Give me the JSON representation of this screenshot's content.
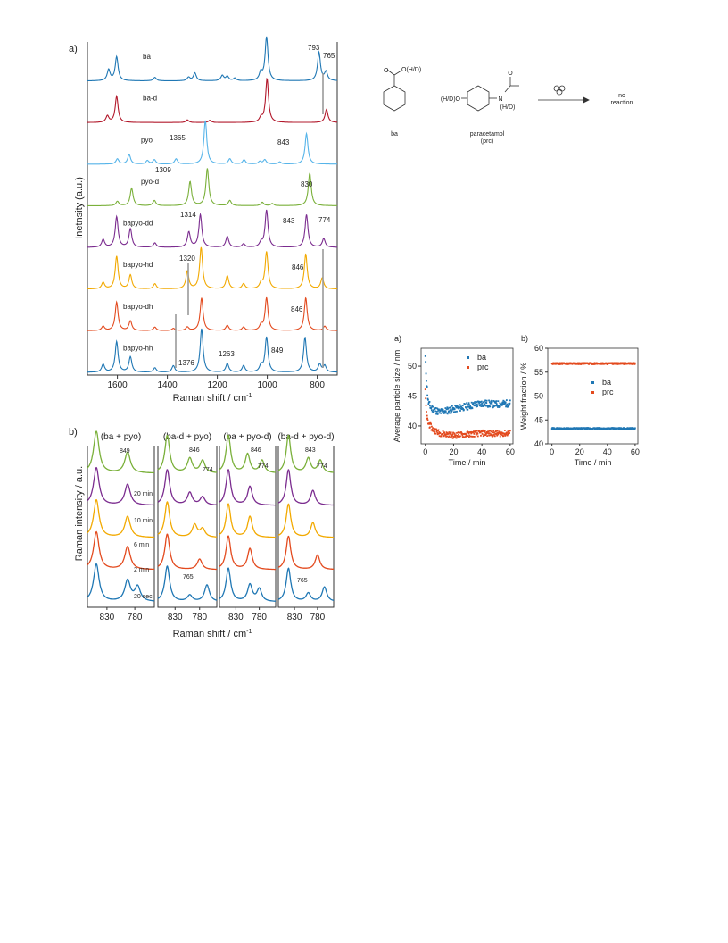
{
  "figure_top": {
    "panel_label": "a)",
    "ylabel": "Inetnsity (a.u.)",
    "xlabel": "Raman shift / cm",
    "xlabel_sup": "-1",
    "xticks": [
      "1600",
      "1400",
      "1200",
      "1000",
      "800"
    ],
    "trace_labels": [
      "ba",
      "ba-d",
      "pyo",
      "pyo-d",
      "bapyo-dd",
      "bapyo-hd",
      "bapyo-dh",
      "bapyo-hh"
    ],
    "annotations": [
      "793",
      "765",
      "1365",
      "843",
      "1309",
      "830",
      "1314",
      "843",
      "774",
      "1320",
      "846",
      "846",
      "1376",
      "1263",
      "849"
    ]
  },
  "figure_bottom": {
    "panel_label": "b)",
    "ylabel": "Raman intensity / a.u.",
    "xlabel": "Raman shift / cm",
    "xlabel_sup": "-1",
    "xticks": [
      "830",
      "780"
    ],
    "column_titles": [
      "(ba + pyo)",
      "(ba-d + pyo)",
      "(ba + pyo-d)",
      "(ba-d + pyo-d)"
    ],
    "time_labels": [
      "20 min",
      "10 min",
      "6 min",
      "2 min",
      "20 sec"
    ],
    "annotations": [
      "849",
      "846",
      "774",
      "846",
      "774",
      "843",
      "774",
      "765",
      "765"
    ]
  },
  "scheme": {
    "reactant1_label": "ba",
    "reactant1_group": "O(H/D)",
    "reactant1_o": "O",
    "reactant2_label": "paracetamol",
    "reactant2_abbrev": "(prc)",
    "reactant2_group_left": "(H/D)O",
    "reactant2_n": "N",
    "reactant2_nh": "(H/D)",
    "reactant2_o": "O",
    "product_line1": "no",
    "product_line2": "reaction"
  },
  "chart_data": [
    {
      "type": "line",
      "panel": "a",
      "title": "",
      "xlabel": "Raman shift / cm-1",
      "ylabel": "Inetnsity (a.u.)",
      "xlim": [
        1720,
        720
      ],
      "x_reversed": true,
      "stacked_offset": true,
      "series": [
        {
          "name": "ba",
          "color": "#1f77b4",
          "peaks": [
            [
              1635,
              0.25
            ],
            [
              1603,
              0.55
            ],
            [
              1450,
              0.08
            ],
            [
              1315,
              0.08
            ],
            [
              1290,
              0.18
            ],
            [
              1180,
              0.12
            ],
            [
              1160,
              0.1
            ],
            [
              1130,
              0.06
            ],
            [
              1026,
              0.18
            ],
            [
              1003,
              1.0
            ],
            [
              793,
              0.65
            ],
            [
              765,
              0.2
            ]
          ]
        },
        {
          "name": "ba-d",
          "color": "#b2182b",
          "peaks": [
            [
              1640,
              0.15
            ],
            [
              1603,
              0.6
            ],
            [
              1320,
              0.06
            ],
            [
              1230,
              0.05
            ],
            [
              1025,
              0.1
            ],
            [
              1001,
              1.0
            ],
            [
              763,
              0.3
            ]
          ]
        },
        {
          "name": "pyo",
          "color": "#56b4e9",
          "peaks": [
            [
              1600,
              0.12
            ],
            [
              1553,
              0.22
            ],
            [
              1480,
              0.08
            ],
            [
              1452,
              0.1
            ],
            [
              1365,
              0.12
            ],
            [
              1248,
              1.0
            ],
            [
              1150,
              0.12
            ],
            [
              1093,
              0.1
            ],
            [
              1030,
              0.06
            ],
            [
              1010,
              0.1
            ],
            [
              950,
              0.05
            ],
            [
              843,
              0.7
            ]
          ]
        },
        {
          "name": "pyo-d",
          "color": "#7ab03a",
          "peaks": [
            [
              1600,
              0.1
            ],
            [
              1543,
              0.4
            ],
            [
              1452,
              0.12
            ],
            [
              1309,
              0.55
            ],
            [
              1240,
              0.85
            ],
            [
              1150,
              0.12
            ],
            [
              1020,
              0.08
            ],
            [
              980,
              0.05
            ],
            [
              830,
              0.75
            ]
          ]
        },
        {
          "name": "bapyo-dd",
          "color": "#7b2c8f",
          "peaks": [
            [
              1657,
              0.18
            ],
            [
              1603,
              0.7
            ],
            [
              1548,
              0.42
            ],
            [
              1450,
              0.1
            ],
            [
              1314,
              0.35
            ],
            [
              1268,
              0.75
            ],
            [
              1160,
              0.25
            ],
            [
              1095,
              0.08
            ],
            [
              1025,
              0.1
            ],
            [
              1003,
              0.85
            ],
            [
              843,
              0.75
            ],
            [
              774,
              0.2
            ]
          ]
        },
        {
          "name": "bapyo-hd",
          "color": "#f2a900",
          "peaks": [
            [
              1657,
              0.15
            ],
            [
              1603,
              0.75
            ],
            [
              1548,
              0.32
            ],
            [
              1450,
              0.12
            ],
            [
              1320,
              0.4
            ],
            [
              1265,
              0.95
            ],
            [
              1160,
              0.3
            ],
            [
              1095,
              0.12
            ],
            [
              1025,
              0.12
            ],
            [
              1003,
              0.85
            ],
            [
              846,
              0.8
            ],
            [
              780,
              0.25
            ]
          ]
        },
        {
          "name": "bapyo-dh",
          "color": "#e34a1e",
          "peaks": [
            [
              1657,
              0.1
            ],
            [
              1603,
              0.65
            ],
            [
              1548,
              0.22
            ],
            [
              1450,
              0.08
            ],
            [
              1376,
              0.05
            ],
            [
              1320,
              0.08
            ],
            [
              1263,
              0.75
            ],
            [
              1160,
              0.12
            ],
            [
              1095,
              0.08
            ],
            [
              1025,
              0.12
            ],
            [
              1003,
              0.75
            ],
            [
              846,
              0.75
            ],
            [
              770,
              0.1
            ]
          ]
        },
        {
          "name": "bapyo-hh",
          "color": "#1f77b4",
          "peaks": [
            [
              1657,
              0.18
            ],
            [
              1603,
              0.7
            ],
            [
              1548,
              0.35
            ],
            [
              1450,
              0.1
            ],
            [
              1376,
              0.15
            ],
            [
              1263,
              1.0
            ],
            [
              1160,
              0.2
            ],
            [
              1095,
              0.15
            ],
            [
              1025,
              0.15
            ],
            [
              1003,
              0.8
            ],
            [
              849,
              0.8
            ],
            [
              790,
              0.18
            ],
            [
              770,
              0.15
            ]
          ]
        }
      ]
    },
    {
      "type": "line",
      "panel": "b",
      "title": "",
      "xlabel": "Raman shift / cm-1",
      "ylabel": "Raman intensity / a.u.",
      "xlim": [
        865,
        745
      ],
      "x_reversed": true,
      "stacked_offset": true,
      "times": [
        "20 sec",
        "2 min",
        "6 min",
        "10 min",
        "20 min"
      ],
      "time_colors": [
        "#1f77b4",
        "#e34a1e",
        "#f2a900",
        "#7b2c8f",
        "#7ab03a"
      ],
      "columns": [
        {
          "name": "(ba + pyo)",
          "peaks": {
            "20 sec": [
              [
                849,
                0.9
              ],
              [
                793,
                0.5
              ],
              [
                775,
                0.35
              ]
            ],
            "2 min": [
              [
                849,
                0.9
              ],
              [
                793,
                0.55
              ]
            ],
            "6 min": [
              [
                849,
                0.9
              ],
              [
                793,
                0.5
              ]
            ],
            "10 min": [
              [
                849,
                0.9
              ],
              [
                793,
                0.5
              ]
            ],
            "20 min": [
              [
                849,
                1.0
              ],
              [
                793,
                0.5
              ]
            ]
          }
        },
        {
          "name": "(ba-d + pyo)",
          "peaks": {
            "20 sec": [
              [
                846,
                0.85
              ],
              [
                800,
                0.15
              ],
              [
                765,
                0.4
              ]
            ],
            "2 min": [
              [
                846,
                0.85
              ],
              [
                780,
                0.25
              ]
            ],
            "6 min": [
              [
                846,
                0.85
              ],
              [
                790,
                0.3
              ],
              [
                774,
                0.2
              ]
            ],
            "10 min": [
              [
                846,
                0.85
              ],
              [
                800,
                0.3
              ],
              [
                774,
                0.2
              ]
            ],
            "20 min": [
              [
                846,
                0.9
              ],
              [
                800,
                0.35
              ],
              [
                774,
                0.3
              ]
            ]
          }
        },
        {
          "name": "(ba + pyo-d)",
          "peaks": {
            "20 sec": [
              [
                846,
                0.8
              ],
              [
                800,
                0.4
              ],
              [
                780,
                0.3
              ]
            ],
            "2 min": [
              [
                846,
                0.8
              ],
              [
                800,
                0.5
              ]
            ],
            "6 min": [
              [
                846,
                0.8
              ],
              [
                800,
                0.5
              ]
            ],
            "10 min": [
              [
                846,
                0.85
              ],
              [
                800,
                0.45
              ]
            ],
            "20 min": [
              [
                846,
                0.9
              ],
              [
                805,
                0.45
              ],
              [
                774,
                0.3
              ]
            ]
          }
        },
        {
          "name": "(ba-d + pyo-d)",
          "peaks": {
            "20 sec": [
              [
                843,
                0.8
              ],
              [
                800,
                0.2
              ],
              [
                765,
                0.35
              ]
            ],
            "2 min": [
              [
                843,
                0.8
              ],
              [
                780,
                0.35
              ]
            ],
            "6 min": [
              [
                843,
                0.8
              ],
              [
                790,
                0.35
              ]
            ],
            "10 min": [
              [
                843,
                0.85
              ],
              [
                790,
                0.35
              ]
            ],
            "20 min": [
              [
                843,
                0.9
              ],
              [
                800,
                0.35
              ],
              [
                774,
                0.3
              ]
            ]
          }
        }
      ]
    },
    {
      "type": "scatter",
      "panel": "a",
      "title": "",
      "xlabel": "Time / min",
      "ylabel": "Average particle size / nm",
      "xlim": [
        -3,
        62
      ],
      "ylim": [
        37,
        53
      ],
      "xticks": [
        0,
        20,
        40,
        60
      ],
      "yticks": [
        40,
        45,
        50
      ],
      "legend": "top-right",
      "series": [
        {
          "name": "ba",
          "color": "#1f77b4",
          "profile": [
            [
              0,
              51.5
            ],
            [
              0.5,
              49
            ],
            [
              1,
              47
            ],
            [
              2,
              44
            ],
            [
              4,
              43
            ],
            [
              10,
              42.3
            ],
            [
              20,
              42.8
            ],
            [
              30,
              43.3
            ],
            [
              40,
              43.8
            ],
            [
              50,
              43.6
            ],
            [
              60,
              43.8
            ]
          ],
          "noise": 0.6
        },
        {
          "name": "prc",
          "color": "#e34a1e",
          "profile": [
            [
              0,
              46
            ],
            [
              0.5,
              43
            ],
            [
              1,
              41.5
            ],
            [
              2,
              40.5
            ],
            [
              5,
              39.5
            ],
            [
              10,
              38.8
            ],
            [
              20,
              38.4
            ],
            [
              30,
              38.6
            ],
            [
              40,
              38.8
            ],
            [
              50,
              38.7
            ],
            [
              60,
              38.8
            ]
          ],
          "noise": 0.5
        }
      ]
    },
    {
      "type": "scatter",
      "panel": "b",
      "title": "",
      "xlabel": "Time / min",
      "ylabel": "Weight fraction / %",
      "xlim": [
        -3,
        62
      ],
      "ylim": [
        40,
        60
      ],
      "xticks": [
        0,
        20,
        40,
        60
      ],
      "yticks": [
        40,
        45,
        50,
        55,
        60
      ],
      "legend": "top-right",
      "series": [
        {
          "name": "ba",
          "color": "#1f77b4",
          "profile": [
            [
              0,
              43.2
            ],
            [
              60,
              43.2
            ]
          ],
          "noise": 0.15
        },
        {
          "name": "prc",
          "color": "#e34a1e",
          "profile": [
            [
              0,
              56.8
            ],
            [
              60,
              56.8
            ]
          ],
          "noise": 0.15
        }
      ]
    }
  ],
  "bottom_right_panel_labels": [
    "a)",
    "b)"
  ]
}
